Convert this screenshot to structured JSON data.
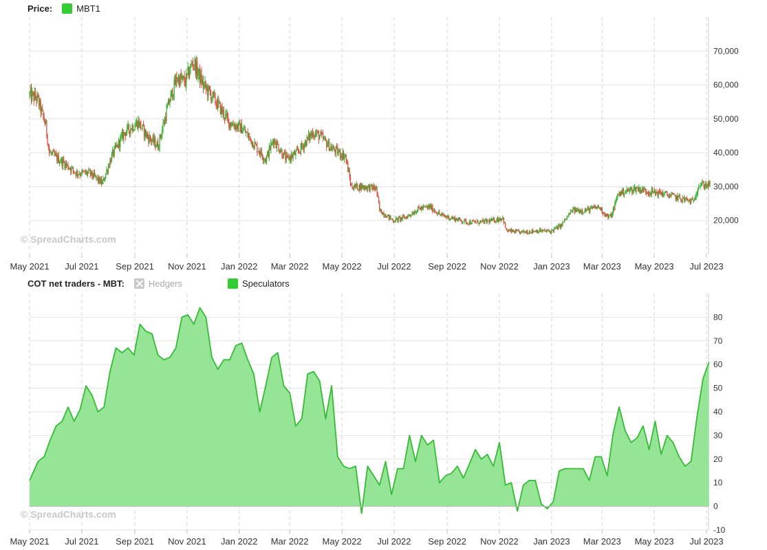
{
  "price_panel": {
    "label": "Price:",
    "series_name": "MBT1",
    "series_color": "#33cc33",
    "up_color": "#2db32d",
    "down_color": "#d94a3a"
  },
  "cot_panel": {
    "label": "COT net traders - MBT:",
    "hedgers_label": "Hedgers",
    "speculators_label": "Speculators",
    "line_color": "#33bb33",
    "fill_color": "#96e596"
  },
  "watermark": "© SpreadCharts.com",
  "chart_data": [
    {
      "type": "candlestick",
      "series": [
        {
          "name": "MBT1"
        }
      ],
      "x_tick_labels": [
        "May 2021",
        "Jul 2021",
        "Sep 2021",
        "Nov 2021",
        "Jan 2022",
        "Mar 2022",
        "May 2022",
        "Jul 2022",
        "Sep 2022",
        "Nov 2022",
        "Jan 2023",
        "Mar 2023",
        "May 2023",
        "Jul 2023"
      ],
      "y_tick_labels": [
        "20,000",
        "30,000",
        "40,000",
        "50,000",
        "60,000",
        "70,000"
      ],
      "y_ticks": [
        20000,
        30000,
        40000,
        50000,
        60000,
        70000
      ],
      "ylim": [
        10000,
        80000
      ],
      "grid": true,
      "close_path": [
        [
          "2021-05-01",
          57000
        ],
        [
          "2021-05-10",
          56000
        ],
        [
          "2021-05-20",
          48000
        ],
        [
          "2021-05-24",
          40000
        ],
        [
          "2021-06-10",
          37000
        ],
        [
          "2021-06-25",
          34000
        ],
        [
          "2021-07-10",
          34000
        ],
        [
          "2021-07-25",
          31000
        ],
        [
          "2021-08-05",
          39000
        ],
        [
          "2021-08-20",
          46000
        ],
        [
          "2021-09-05",
          49000
        ],
        [
          "2021-09-15",
          45000
        ],
        [
          "2021-09-28",
          42000
        ],
        [
          "2021-10-10",
          54000
        ],
        [
          "2021-10-20",
          62000
        ],
        [
          "2021-10-30",
          61000
        ],
        [
          "2021-11-08",
          67000
        ],
        [
          "2021-11-20",
          60000
        ],
        [
          "2021-12-05",
          55000
        ],
        [
          "2021-12-20",
          49000
        ],
        [
          "2022-01-05",
          47000
        ],
        [
          "2022-01-20",
          42000
        ],
        [
          "2022-02-01",
          38000
        ],
        [
          "2022-02-10",
          44000
        ],
        [
          "2022-02-25",
          38000
        ],
        [
          "2022-03-10",
          40000
        ],
        [
          "2022-03-28",
          46000
        ],
        [
          "2022-04-05",
          45000
        ],
        [
          "2022-04-20",
          41000
        ],
        [
          "2022-05-05",
          39000
        ],
        [
          "2022-05-12",
          30000
        ],
        [
          "2022-05-25",
          30000
        ],
        [
          "2022-06-10",
          29500
        ],
        [
          "2022-06-14",
          23000
        ],
        [
          "2022-06-30",
          20000
        ],
        [
          "2022-07-15",
          21000
        ],
        [
          "2022-07-30",
          23500
        ],
        [
          "2022-08-12",
          24000
        ],
        [
          "2022-08-25",
          21500
        ],
        [
          "2022-09-10",
          20500
        ],
        [
          "2022-09-25",
          19500
        ],
        [
          "2022-10-10",
          19500
        ],
        [
          "2022-10-25",
          20000
        ],
        [
          "2022-11-05",
          20800
        ],
        [
          "2022-11-09",
          17000
        ],
        [
          "2022-11-25",
          16500
        ],
        [
          "2022-12-15",
          17000
        ],
        [
          "2022-12-31",
          16800
        ],
        [
          "2023-01-12",
          18500
        ],
        [
          "2023-01-25",
          23000
        ],
        [
          "2023-02-10",
          23000
        ],
        [
          "2023-02-25",
          24000
        ],
        [
          "2023-03-08",
          21000
        ],
        [
          "2023-03-12",
          21500
        ],
        [
          "2023-03-20",
          28000
        ],
        [
          "2023-04-10",
          29500
        ],
        [
          "2023-04-25",
          28500
        ],
        [
          "2023-05-10",
          28000
        ],
        [
          "2023-05-25",
          27000
        ],
        [
          "2023-06-15",
          25500
        ],
        [
          "2023-06-22",
          30500
        ],
        [
          "2023-07-05",
          30500
        ]
      ]
    },
    {
      "type": "area",
      "series": [
        {
          "name": "Speculators"
        }
      ],
      "x_tick_labels": [
        "May 2021",
        "Jul 2021",
        "Sep 2021",
        "Nov 2021",
        "Jan 2022",
        "Mar 2022",
        "May 2022",
        "Jul 2022",
        "Sep 2022",
        "Nov 2022",
        "Jan 2023",
        "Mar 2023",
        "May 2023",
        "Jul 2023"
      ],
      "y_tick_labels": [
        "-10",
        "0",
        "10",
        "20",
        "30",
        "40",
        "50",
        "60",
        "70",
        "80"
      ],
      "y_ticks": [
        -10,
        0,
        10,
        20,
        30,
        40,
        50,
        60,
        70,
        80
      ],
      "ylim": [
        -10,
        90
      ],
      "grid": true,
      "points": [
        [
          "2021-05-01",
          11
        ],
        [
          "2021-05-11",
          19
        ],
        [
          "2021-05-18",
          21
        ],
        [
          "2021-05-25",
          28
        ],
        [
          "2021-06-01",
          34
        ],
        [
          "2021-06-08",
          36
        ],
        [
          "2021-06-15",
          42
        ],
        [
          "2021-06-22",
          36
        ],
        [
          "2021-06-29",
          41
        ],
        [
          "2021-07-06",
          51
        ],
        [
          "2021-07-13",
          47
        ],
        [
          "2021-07-20",
          40
        ],
        [
          "2021-07-27",
          42
        ],
        [
          "2021-08-03",
          57
        ],
        [
          "2021-08-10",
          67
        ],
        [
          "2021-08-17",
          65
        ],
        [
          "2021-08-24",
          67
        ],
        [
          "2021-08-31",
          64
        ],
        [
          "2021-09-07",
          77
        ],
        [
          "2021-09-14",
          74
        ],
        [
          "2021-09-21",
          73
        ],
        [
          "2021-09-28",
          64
        ],
        [
          "2021-10-05",
          62
        ],
        [
          "2021-10-12",
          63
        ],
        [
          "2021-10-19",
          67
        ],
        [
          "2021-10-26",
          80
        ],
        [
          "2021-11-02",
          81
        ],
        [
          "2021-11-09",
          77
        ],
        [
          "2021-11-16",
          84
        ],
        [
          "2021-11-23",
          80
        ],
        [
          "2021-11-30",
          63
        ],
        [
          "2021-12-07",
          58
        ],
        [
          "2021-12-14",
          62
        ],
        [
          "2021-12-21",
          62
        ],
        [
          "2021-12-28",
          68
        ],
        [
          "2022-01-04",
          69
        ],
        [
          "2022-01-11",
          62
        ],
        [
          "2022-01-18",
          56
        ],
        [
          "2022-01-25",
          40
        ],
        [
          "2022-02-01",
          51
        ],
        [
          "2022-02-08",
          63
        ],
        [
          "2022-02-15",
          65
        ],
        [
          "2022-02-22",
          51
        ],
        [
          "2022-03-01",
          48
        ],
        [
          "2022-03-08",
          34
        ],
        [
          "2022-03-15",
          37
        ],
        [
          "2022-03-22",
          56
        ],
        [
          "2022-03-29",
          57
        ],
        [
          "2022-04-05",
          53
        ],
        [
          "2022-04-12",
          37
        ],
        [
          "2022-04-19",
          51
        ],
        [
          "2022-04-26",
          21
        ],
        [
          "2022-05-03",
          17
        ],
        [
          "2022-05-10",
          16
        ],
        [
          "2022-05-17",
          17
        ],
        [
          "2022-05-24",
          -3
        ],
        [
          "2022-05-31",
          17
        ],
        [
          "2022-06-07",
          13
        ],
        [
          "2022-06-14",
          9
        ],
        [
          "2022-06-21",
          19
        ],
        [
          "2022-06-28",
          5
        ],
        [
          "2022-07-05",
          16
        ],
        [
          "2022-07-12",
          16
        ],
        [
          "2022-07-19",
          30
        ],
        [
          "2022-07-26",
          19
        ],
        [
          "2022-08-02",
          30
        ],
        [
          "2022-08-09",
          26
        ],
        [
          "2022-08-16",
          28
        ],
        [
          "2022-08-23",
          10
        ],
        [
          "2022-08-30",
          13
        ],
        [
          "2022-09-06",
          14
        ],
        [
          "2022-09-13",
          17
        ],
        [
          "2022-09-20",
          12
        ],
        [
          "2022-09-27",
          18
        ],
        [
          "2022-10-04",
          24
        ],
        [
          "2022-10-11",
          20
        ],
        [
          "2022-10-18",
          22
        ],
        [
          "2022-10-25",
          17
        ],
        [
          "2022-11-01",
          27
        ],
        [
          "2022-11-08",
          9
        ],
        [
          "2022-11-15",
          10
        ],
        [
          "2022-11-22",
          -2
        ],
        [
          "2022-11-29",
          9
        ],
        [
          "2022-12-06",
          11
        ],
        [
          "2022-12-13",
          11
        ],
        [
          "2022-12-20",
          1
        ],
        [
          "2022-12-27",
          -1
        ],
        [
          "2023-01-03",
          2
        ],
        [
          "2023-01-10",
          15
        ],
        [
          "2023-01-17",
          16
        ],
        [
          "2023-01-24",
          16
        ],
        [
          "2023-01-31",
          16
        ],
        [
          "2023-02-07",
          16
        ],
        [
          "2023-02-14",
          11
        ],
        [
          "2023-02-21",
          21
        ],
        [
          "2023-02-28",
          21
        ],
        [
          "2023-03-07",
          13
        ],
        [
          "2023-03-14",
          31
        ],
        [
          "2023-03-21",
          42
        ],
        [
          "2023-03-28",
          32
        ],
        [
          "2023-04-04",
          27
        ],
        [
          "2023-04-11",
          29
        ],
        [
          "2023-04-18",
          34
        ],
        [
          "2023-04-25",
          24
        ],
        [
          "2023-05-02",
          36
        ],
        [
          "2023-05-09",
          22
        ],
        [
          "2023-05-16",
          30
        ],
        [
          "2023-05-23",
          27
        ],
        [
          "2023-05-30",
          21
        ],
        [
          "2023-06-06",
          17
        ],
        [
          "2023-06-13",
          19
        ],
        [
          "2023-06-20",
          38
        ],
        [
          "2023-06-27",
          54
        ],
        [
          "2023-07-04",
          61
        ]
      ]
    }
  ]
}
